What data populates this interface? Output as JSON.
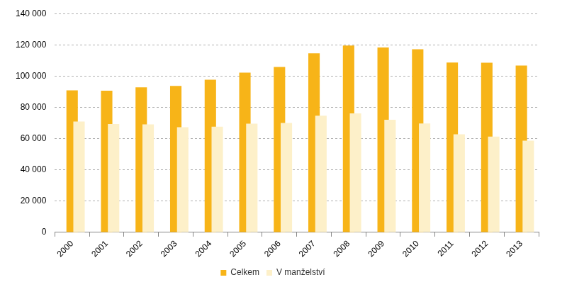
{
  "chart_data": {
    "type": "bar",
    "categories": [
      "2000",
      "2001",
      "2002",
      "2003",
      "2004",
      "2005",
      "2006",
      "2007",
      "2008",
      "2009",
      "2010",
      "2011",
      "2012",
      "2013"
    ],
    "series": [
      {
        "name": "Celkem",
        "color": "#f7b418",
        "values": [
          90900,
          90700,
          92800,
          93700,
          97700,
          102200,
          105800,
          114600,
          119600,
          118300,
          117200,
          108700,
          108600,
          106800
        ]
      },
      {
        "name": "V manželství",
        "color": "#fdf0c9",
        "values": [
          70900,
          69300,
          69100,
          67300,
          67600,
          69600,
          70000,
          74700,
          76100,
          72100,
          69700,
          62800,
          61300,
          58700
        ]
      }
    ],
    "ylim": [
      0,
      140000
    ],
    "yticks": [
      0,
      {
        "value": 20000,
        "label": "20 000"
      },
      {
        "value": 40000,
        "label": "40 000"
      },
      {
        "value": 60000,
        "label": "60 000"
      },
      {
        "value": 80000,
        "label": "80 000"
      },
      {
        "value": 100000,
        "label": "100 000"
      },
      {
        "value": 120000,
        "label": "120 000"
      },
      {
        "value": 140000,
        "label": "140 000"
      }
    ],
    "grid": true,
    "legend": "bottom"
  }
}
